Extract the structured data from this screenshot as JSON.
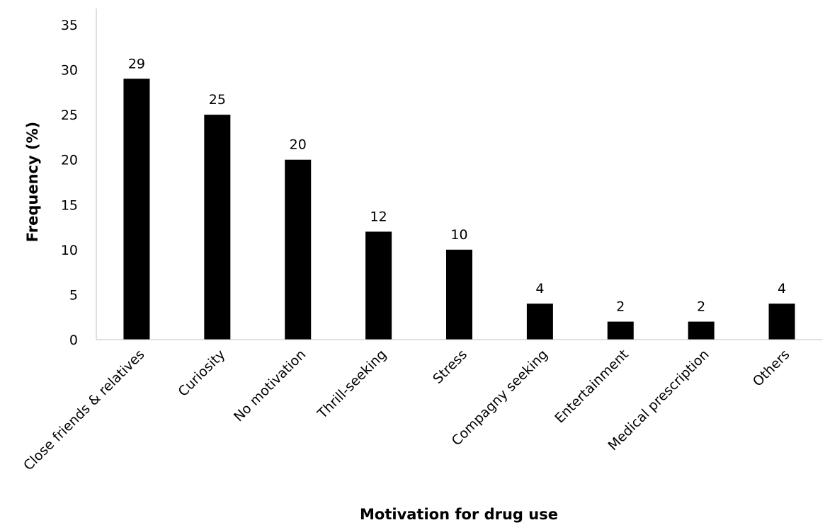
{
  "chart_data": {
    "type": "bar",
    "title": "",
    "xlabel": "Motivation for drug use",
    "ylabel": "Frequency (%)",
    "categories": [
      "Close friends & relatives",
      "Curiosity",
      "No motivation",
      "Thrill-seeking",
      "Stress",
      "Compagny seeking",
      "Entertainment",
      "Medical prescription",
      "Others"
    ],
    "values": [
      29,
      25,
      20,
      12,
      10,
      4,
      2,
      2,
      4
    ],
    "ylim": [
      0,
      35
    ],
    "yticks": [
      "0",
      "5",
      "10",
      "15",
      "20",
      "25",
      "30",
      "35"
    ],
    "bar_color": "#000000",
    "grid": false,
    "legend": "none"
  }
}
